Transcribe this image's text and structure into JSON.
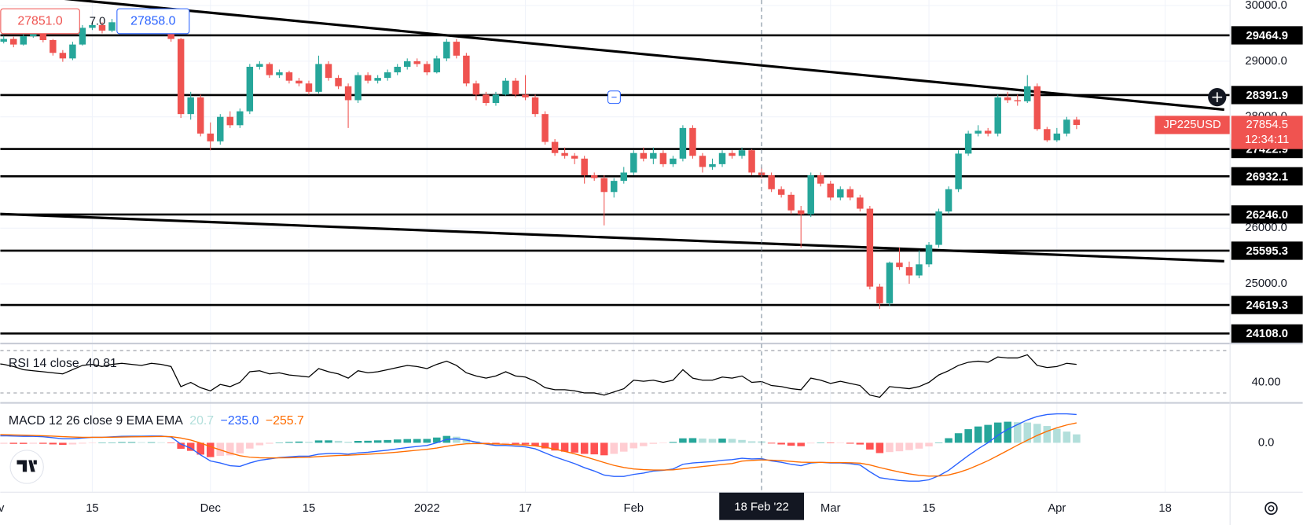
{
  "header": {
    "sell": "27851.0",
    "spread": "7.0",
    "buy": "27858.0"
  },
  "chart_data": [
    {
      "type": "candlestick",
      "symbol": "JP225USD",
      "last_price": 27854.5,
      "countdown": "12:34:11",
      "up_color": "#26a69a",
      "down_color": "#ef5350",
      "last_color": "#f05350",
      "level_color": "#000000",
      "grid": true,
      "ylim": [
        23950,
        30100
      ],
      "xlim": [
        0.65,
        125.55
      ],
      "yticks": [
        {
          "value": 30000,
          "label": "30000.0"
        },
        {
          "value": 29000,
          "label": "29000.0"
        },
        {
          "value": 28000,
          "label": "28000.0"
        },
        {
          "value": 26000,
          "label": "26000.0"
        },
        {
          "value": 25000,
          "label": "25000.0"
        }
      ],
      "xticks": [
        {
          "value": 0,
          "label": "Nov"
        },
        {
          "value": 10,
          "label": "15"
        },
        {
          "value": 22,
          "label": "Dec"
        },
        {
          "value": 32,
          "label": "15"
        },
        {
          "value": 44,
          "label": "2022"
        },
        {
          "value": 54,
          "label": "17"
        },
        {
          "value": 65,
          "label": "Feb"
        },
        {
          "value": 85,
          "label": "Mar"
        },
        {
          "value": 95,
          "label": "15"
        },
        {
          "value": 108,
          "label": "Apr"
        },
        {
          "value": 119,
          "label": "18"
        }
      ],
      "crosshair": {
        "value": 78,
        "label": "18 Feb '22"
      },
      "levels": [
        29464.9,
        28391.9,
        27422.9,
        26932.1,
        {
          "value": 26246,
          "label": "26246.0"
        },
        25595.3,
        24619.3,
        {
          "value": 24108,
          "label": "24108.0"
        }
      ],
      "trendlines": [
        {
          "from": [
            0,
            30243
          ],
          "to": [
            125,
            28130
          ]
        },
        {
          "from": [
            0,
            26260
          ],
          "to": [
            125,
            25406
          ]
        }
      ],
      "ohlc": [
        [
          29300,
          29420,
          29250,
          29350
        ],
        [
          29350,
          29460,
          29320,
          29400
        ],
        [
          29400,
          29440,
          29250,
          29300
        ],
        [
          29300,
          29500,
          29280,
          29450
        ],
        [
          29450,
          29560,
          29420,
          29500
        ],
        [
          29500,
          29520,
          29340,
          29380
        ],
        [
          29380,
          29400,
          29100,
          29150
        ],
        [
          29150,
          29200,
          28990,
          29050
        ],
        [
          29050,
          29350,
          29020,
          29300
        ],
        [
          29300,
          29650,
          29280,
          29600
        ],
        [
          29600,
          29700,
          29560,
          29650
        ],
        [
          29650,
          29700,
          29500,
          29550
        ],
        [
          29550,
          29760,
          29520,
          29700
        ],
        [
          29700,
          29800,
          29660,
          29750
        ],
        [
          29750,
          29780,
          29640,
          29680
        ],
        [
          29680,
          29700,
          29560,
          29600
        ],
        [
          29600,
          29760,
          29580,
          29720
        ],
        [
          29720,
          29740,
          29600,
          29650
        ],
        [
          29650,
          29680,
          29350,
          29400
        ],
        [
          29400,
          29420,
          27980,
          28050
        ],
        [
          28050,
          28450,
          27950,
          28350
        ],
        [
          28350,
          28400,
          27650,
          27700
        ],
        [
          27700,
          27900,
          27400,
          27560
        ],
        [
          27560,
          28050,
          27500,
          28000
        ],
        [
          28000,
          28100,
          27800,
          27850
        ],
        [
          27850,
          28150,
          27800,
          28100
        ],
        [
          28100,
          28950,
          28050,
          28900
        ],
        [
          28900,
          29000,
          28850,
          28950
        ],
        [
          28950,
          28980,
          28700,
          28750
        ],
        [
          28750,
          28850,
          28700,
          28800
        ],
        [
          28800,
          28830,
          28600,
          28650
        ],
        [
          28650,
          28700,
          28550,
          28600
        ],
        [
          28600,
          28650,
          28400,
          28450
        ],
        [
          28450,
          29100,
          28420,
          28950
        ],
        [
          28950,
          29000,
          28650,
          28700
        ],
        [
          28700,
          28750,
          28500,
          28550
        ],
        [
          28550,
          28600,
          27800,
          28300
        ],
        [
          28300,
          28800,
          28250,
          28750
        ],
        [
          28750,
          28800,
          28600,
          28650
        ],
        [
          28650,
          28750,
          28600,
          28700
        ],
        [
          28700,
          28850,
          28650,
          28800
        ],
        [
          28800,
          28950,
          28750,
          28900
        ],
        [
          28900,
          29050,
          28850,
          29000
        ],
        [
          29000,
          29050,
          28900,
          28950
        ],
        [
          28950,
          29000,
          28750,
          28800
        ],
        [
          28800,
          29100,
          28780,
          29050
        ],
        [
          29050,
          29400,
          29000,
          29350
        ],
        [
          29350,
          29400,
          29050,
          29100
        ],
        [
          29100,
          29150,
          28550,
          28600
        ],
        [
          28600,
          28650,
          28300,
          28400
        ],
        [
          28400,
          28450,
          28200,
          28250
        ],
        [
          28250,
          28450,
          28200,
          28400
        ],
        [
          28400,
          28700,
          28380,
          28650
        ],
        [
          28650,
          28700,
          28350,
          28400
        ],
        [
          28400,
          28750,
          28300,
          28350
        ],
        [
          28350,
          28400,
          28000,
          28050
        ],
        [
          28050,
          28100,
          27500,
          27550
        ],
        [
          27550,
          27600,
          27300,
          27350
        ],
        [
          27350,
          27450,
          27250,
          27300
        ],
        [
          27300,
          27350,
          27150,
          27250
        ],
        [
          27250,
          27300,
          26800,
          26950
        ],
        [
          26950,
          27000,
          26850,
          26900
        ],
        [
          26900,
          26950,
          26050,
          26650
        ],
        [
          26650,
          26900,
          26550,
          26850
        ],
        [
          26850,
          27100,
          26800,
          27000
        ],
        [
          27000,
          27400,
          26950,
          27350
        ],
        [
          27350,
          27450,
          27200,
          27250
        ],
        [
          27250,
          27450,
          27150,
          27350
        ],
        [
          27350,
          27400,
          27100,
          27150
        ],
        [
          27150,
          27300,
          27100,
          27250
        ],
        [
          27250,
          27850,
          27200,
          27800
        ],
        [
          27800,
          27850,
          27250,
          27300
        ],
        [
          27300,
          27350,
          27000,
          27100
        ],
        [
          27100,
          27250,
          27050,
          27150
        ],
        [
          27150,
          27400,
          27100,
          27350
        ],
        [
          27350,
          27400,
          27250,
          27300
        ],
        [
          27300,
          27450,
          27250,
          27400
        ],
        [
          27400,
          27420,
          26950,
          27000
        ],
        [
          27000,
          27100,
          26900,
          26950
        ],
        [
          26950,
          27000,
          26650,
          26700
        ],
        [
          26700,
          26750,
          26550,
          26600
        ],
        [
          26600,
          26650,
          26250,
          26320
        ],
        [
          26320,
          26400,
          25650,
          26250
        ],
        [
          26250,
          27000,
          26200,
          26950
        ],
        [
          26950,
          27000,
          26750,
          26800
        ],
        [
          26800,
          26850,
          26500,
          26550
        ],
        [
          26550,
          26750,
          26500,
          26700
        ],
        [
          26700,
          26750,
          26500,
          26550
        ],
        [
          26550,
          26600,
          26300,
          26350
        ],
        [
          26350,
          26400,
          24900,
          24950
        ],
        [
          24950,
          25000,
          24550,
          24650
        ],
        [
          24650,
          25400,
          24600,
          25380
        ],
        [
          25380,
          25650,
          25250,
          25300
        ],
        [
          25300,
          25400,
          25000,
          25150
        ],
        [
          25150,
          25600,
          25100,
          25350
        ],
        [
          25350,
          25750,
          25300,
          25700
        ],
        [
          25700,
          26350,
          25650,
          26300
        ],
        [
          26300,
          26750,
          26250,
          26700
        ],
        [
          26700,
          27400,
          26650,
          27340
        ],
        [
          27340,
          27750,
          27300,
          27700
        ],
        [
          27700,
          27850,
          27650,
          27750
        ],
        [
          27750,
          27800,
          27650,
          27700
        ],
        [
          27700,
          28400,
          27650,
          28350
        ],
        [
          28350,
          28450,
          28250,
          28300
        ],
        [
          28300,
          28400,
          28200,
          28280
        ],
        [
          28280,
          28750,
          28250,
          28550
        ],
        [
          28550,
          28600,
          27750,
          27780
        ],
        [
          27780,
          27820,
          27550,
          27580
        ],
        [
          27580,
          27800,
          27550,
          27700
        ],
        [
          27700,
          28000,
          27650,
          27950
        ],
        [
          27950,
          28000,
          27780,
          27854.5
        ]
      ]
    },
    {
      "type": "line",
      "name": "RSI 14 close",
      "value_label": "40.81",
      "color": "#000000",
      "ylim": [
        22.2,
        75.5
      ],
      "yticks": [
        {
          "value": 40,
          "label": "40.00"
        }
      ],
      "bands": [
        30,
        70
      ],
      "values": [
        58,
        57,
        55,
        52,
        51,
        50,
        49,
        48,
        52,
        56,
        57,
        55,
        57,
        58,
        57,
        56,
        58,
        57,
        55,
        36,
        40,
        35,
        32,
        38,
        36,
        40,
        50,
        51,
        48,
        49,
        47,
        46,
        45,
        53,
        50,
        48,
        44,
        51,
        49,
        50,
        52,
        54,
        56,
        55,
        53,
        57,
        60,
        56,
        49,
        46,
        44,
        46,
        50,
        46,
        45,
        41,
        35,
        33,
        33,
        32,
        30,
        30,
        28,
        31,
        34,
        42,
        41,
        42,
        40,
        42,
        52,
        44,
        42,
        42,
        45,
        44,
        46,
        40,
        40.81,
        37,
        36,
        34,
        33,
        44,
        42,
        39,
        41,
        39,
        37,
        28,
        26,
        36,
        35,
        34,
        36,
        40,
        47,
        51,
        56,
        59,
        60,
        59,
        64,
        63,
        63,
        66,
        56,
        54,
        55,
        58,
        57
      ]
    },
    {
      "type": "macd",
      "name": "MACD 12 26 close 9 EMA EMA",
      "ylim": [
        -728,
        568
      ],
      "yticks": [
        {
          "value": 0,
          "label": "0.0"
        }
      ],
      "histogram": {
        "value_label": "20.7",
        "colors": [
          "#26a69a",
          "#b2dfdb",
          "#ff5252",
          "#ffcdd2"
        ],
        "values": [
          -24,
          -15,
          -16,
          -17,
          -14,
          -15,
          -24,
          -31,
          -25,
          -12,
          -2,
          0,
          5,
          10,
          10,
          8,
          8,
          6,
          -7,
          -90,
          -120,
          -176,
          -213,
          -194,
          -187,
          -158,
          -86,
          -37,
          -14,
          5,
          12,
          18,
          14,
          35,
          36,
          29,
          15,
          28,
          30,
          36,
          41,
          49,
          55,
          56,
          57,
          78,
          102,
          90,
          56,
          21,
          -7,
          -22,
          -18,
          -22,
          -26,
          -45,
          -84,
          -115,
          -132,
          -146,
          -165,
          -172,
          -186,
          -165,
          -132,
          -82,
          -50,
          -16,
          -5,
          12,
          66,
          69,
          63,
          58,
          62,
          58,
          42,
          22,
          20.7,
          -11,
          -25,
          -44,
          -51,
          -9,
          1,
          -7,
          -6,
          -13,
          -26,
          -101,
          -153,
          -138,
          -126,
          -109,
          -87,
          -54,
          5,
          68,
          142,
          202,
          242,
          266,
          301,
          313,
          306,
          301,
          281,
          249,
          207,
          166,
          125
        ]
      },
      "macd": {
        "value_label": "−235.0",
        "color": "#2962ff",
        "values": [
          100,
          105,
          100,
          95,
          95,
          90,
          75,
          60,
          60,
          70,
          80,
          82,
          88,
          95,
          98,
          98,
          100,
          100,
          85,
          -20,
          -80,
          -180,
          -270,
          -300,
          -340,
          -350,
          -300,
          -260,
          -240,
          -220,
          -210,
          -200,
          -200,
          -170,
          -160,
          -160,
          -170,
          -150,
          -140,
          -125,
          -110,
          -90,
          -70,
          -55,
          -40,
          0,
          50,
          60,
          40,
          10,
          -20,
          -40,
          -40,
          -50,
          -60,
          -90,
          -150,
          -210,
          -260,
          -310,
          -370,
          -420,
          -480,
          -500,
          -500,
          -470,
          -450,
          -420,
          -410,
          -390,
          -320,
          -300,
          -290,
          -280,
          -260,
          -250,
          -230,
          -240,
          -235,
          -270,
          -290,
          -320,
          -340,
          -300,
          -290,
          -300,
          -300,
          -310,
          -330,
          -430,
          -520,
          -540,
          -560,
          -570,
          -570,
          -550,
          -490,
          -410,
          -300,
          -190,
          -90,
          0,
          110,
          200,
          270,
          340,
          390,
          420,
          430,
          430,
          420
        ]
      },
      "signal": {
        "value_label": "−255.7",
        "color": "#ff6d00",
        "values": [
          124,
          120,
          116,
          112,
          109,
          105,
          99,
          91,
          85,
          82,
          82,
          82,
          83,
          85,
          88,
          90,
          92,
          94,
          92,
          70,
          40,
          -4,
          -57,
          -106,
          -153,
          -192,
          -214,
          -223,
          -226,
          -225,
          -222,
          -218,
          -214,
          -205,
          -196,
          -189,
          -185,
          -178,
          -170,
          -161,
          -151,
          -139,
          -125,
          -111,
          -97,
          -78,
          -52,
          -30,
          -16,
          -11,
          -13,
          -18,
          -22,
          -28,
          -34,
          -45,
          -66,
          -95,
          -128,
          -164,
          -205,
          -248,
          -294,
          -335,
          -368,
          -388,
          -400,
          -404,
          -405,
          -402,
          -386,
          -369,
          -353,
          -338,
          -322,
          -308,
          -272,
          -262,
          -255.7,
          -259,
          -265,
          -276,
          -289,
          -291,
          -291,
          -293,
          -294,
          -297,
          -304,
          -329,
          -367,
          -402,
          -434,
          -461,
          -483,
          -496,
          -495,
          -478,
          -442,
          -392,
          -332,
          -266,
          -191,
          -113,
          -36,
          39,
          109,
          171,
          223,
          264,
          295
        ]
      }
    }
  ]
}
